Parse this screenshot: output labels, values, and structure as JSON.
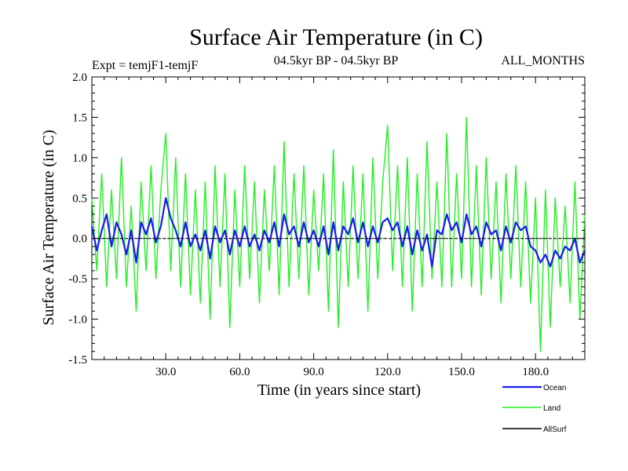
{
  "chart_data": {
    "type": "line",
    "title": "Surface Air Temperature (in C)",
    "subtitle": "04.5kyr BP - 04.5kyr BP",
    "left_label": "Expt = temjF1-temjF",
    "right_label": "ALL_MONTHS",
    "xlabel": "Time (in years since start)",
    "ylabel": "Surface Air Temperature (in C)",
    "xlim": [
      0,
      200
    ],
    "ylim": [
      -1.5,
      2.0
    ],
    "x_ticks": [
      30,
      60,
      90,
      120,
      150,
      180
    ],
    "x_tick_labels": [
      "30.0",
      "60.0",
      "90.0",
      "120.0",
      "150.0",
      "180.0"
    ],
    "y_ticks": [
      -1.5,
      -1.0,
      -0.5,
      0.0,
      0.5,
      1.0,
      1.5,
      2.0
    ],
    "y_tick_labels": [
      "-1.5",
      "-1.0",
      "-0.5",
      "0.0",
      "0.5",
      "1.0",
      "1.5",
      "2.0"
    ],
    "series": [
      {
        "name": "Land",
        "color": "#22ee22",
        "x": [
          0,
          2,
          4,
          6,
          8,
          10,
          12,
          14,
          16,
          18,
          20,
          22,
          24,
          26,
          28,
          30,
          32,
          34,
          36,
          38,
          40,
          42,
          44,
          46,
          48,
          50,
          52,
          54,
          56,
          58,
          60,
          62,
          64,
          66,
          68,
          70,
          72,
          74,
          76,
          78,
          80,
          82,
          84,
          86,
          88,
          90,
          92,
          94,
          96,
          98,
          100,
          102,
          104,
          106,
          108,
          110,
          112,
          114,
          116,
          118,
          120,
          122,
          124,
          126,
          128,
          130,
          132,
          134,
          136,
          138,
          140,
          142,
          144,
          146,
          148,
          150,
          152,
          154,
          156,
          158,
          160,
          162,
          164,
          166,
          168,
          170,
          172,
          174,
          176,
          178,
          180,
          182,
          184,
          186,
          188,
          190,
          192,
          194,
          196,
          198,
          200
        ],
        "values": [
          0.5,
          -0.4,
          0.8,
          -0.6,
          0.6,
          -0.5,
          1.0,
          -0.6,
          0.4,
          -0.9,
          0.7,
          -0.4,
          0.9,
          -0.5,
          0.6,
          1.3,
          -0.4,
          1.0,
          -0.6,
          0.8,
          -0.7,
          0.6,
          -0.8,
          0.7,
          -1.0,
          0.9,
          -0.6,
          0.8,
          -1.1,
          0.6,
          -0.6,
          0.9,
          -0.5,
          0.7,
          -0.8,
          0.6,
          -0.4,
          0.9,
          -0.7,
          1.2,
          -0.6,
          0.8,
          -0.5,
          0.9,
          -0.7,
          0.6,
          -0.4,
          0.8,
          -0.9,
          1.1,
          -1.1,
          0.7,
          -0.6,
          0.9,
          -0.5,
          0.8,
          -0.9,
          1.0,
          -0.5,
          0.7,
          1.4,
          -0.4,
          0.9,
          -0.6,
          1.0,
          -0.9,
          0.8,
          -0.6,
          1.2,
          -0.5,
          0.7,
          -0.6,
          1.3,
          -0.6,
          0.8,
          -0.5,
          1.5,
          -0.6,
          0.9,
          -0.7,
          1.0,
          -0.5,
          0.7,
          -0.8,
          0.8,
          -0.5,
          0.9,
          -0.6,
          0.7,
          -0.8,
          0.5,
          -1.4,
          0.6,
          -1.1,
          0.5,
          -0.6,
          0.4,
          -0.8,
          0.7,
          -1.0,
          0.3
        ]
      },
      {
        "name": "Ocean",
        "color": "#1a1aee",
        "x": [
          0,
          2,
          4,
          6,
          8,
          10,
          12,
          14,
          16,
          18,
          20,
          22,
          24,
          26,
          28,
          30,
          32,
          34,
          36,
          38,
          40,
          42,
          44,
          46,
          48,
          50,
          52,
          54,
          56,
          58,
          60,
          62,
          64,
          66,
          68,
          70,
          72,
          74,
          76,
          78,
          80,
          82,
          84,
          86,
          88,
          90,
          92,
          94,
          96,
          98,
          100,
          102,
          104,
          106,
          108,
          110,
          112,
          114,
          116,
          118,
          120,
          122,
          124,
          126,
          128,
          130,
          132,
          134,
          136,
          138,
          140,
          142,
          144,
          146,
          148,
          150,
          152,
          154,
          156,
          158,
          160,
          162,
          164,
          166,
          168,
          170,
          172,
          174,
          176,
          178,
          180,
          182,
          184,
          186,
          188,
          190,
          192,
          194,
          196,
          198,
          200
        ],
        "values": [
          0.15,
          -0.15,
          0.1,
          0.3,
          -0.1,
          0.2,
          0.05,
          -0.2,
          0.1,
          -0.3,
          0.2,
          0.05,
          0.25,
          -0.05,
          0.15,
          0.5,
          0.25,
          0.1,
          -0.1,
          0.2,
          -0.1,
          0.05,
          -0.15,
          0.1,
          -0.25,
          0.15,
          -0.05,
          0.1,
          -0.2,
          0.1,
          -0.1,
          0.15,
          -0.1,
          0.05,
          -0.15,
          0.1,
          -0.05,
          0.2,
          -0.1,
          0.3,
          0.05,
          0.15,
          -0.1,
          0.2,
          -0.05,
          0.1,
          -0.1,
          0.15,
          -0.2,
          0.2,
          -0.15,
          0.15,
          0.05,
          0.25,
          -0.05,
          0.2,
          -0.1,
          0.15,
          -0.05,
          0.2,
          0.25,
          0.1,
          0.2,
          -0.1,
          0.15,
          -0.2,
          0.1,
          -0.15,
          0.05,
          -0.35,
          0.1,
          0.05,
          0.3,
          0.1,
          0.2,
          -0.05,
          0.3,
          0.05,
          0.15,
          -0.1,
          0.2,
          0.05,
          0.1,
          -0.15,
          0.15,
          -0.05,
          0.2,
          0.1,
          0.15,
          -0.1,
          -0.15,
          -0.3,
          -0.2,
          -0.35,
          -0.15,
          -0.25,
          -0.1,
          -0.15,
          0.0,
          -0.3,
          -0.15
        ]
      },
      {
        "name": "AllSurf",
        "color": "#000000",
        "x": [
          0,
          200
        ],
        "values": [
          0.0,
          0.0
        ]
      }
    ],
    "legend": [
      "Ocean",
      "Land",
      "AllSurf"
    ],
    "legend_position": "bottom-right",
    "reference_line": 0.0
  }
}
